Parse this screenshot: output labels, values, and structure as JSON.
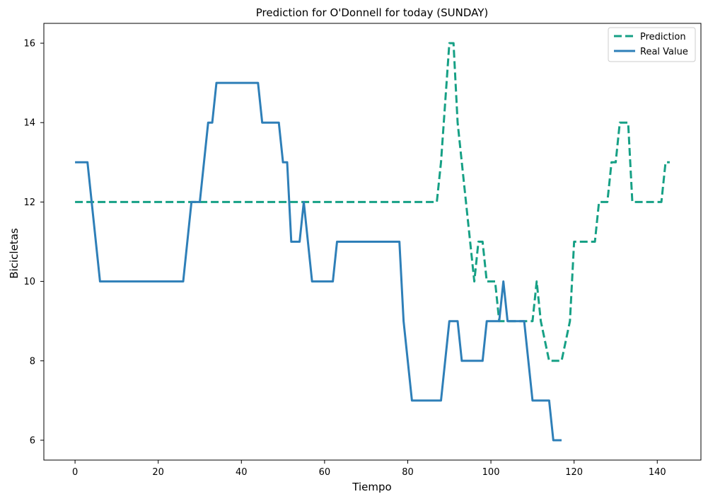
{
  "chart_data": {
    "type": "line",
    "title": "Prediction for O'Donnell for today (SUNDAY)",
    "xlabel": "Tiempo",
    "ylabel": "Bicicletas",
    "xlim": [
      -7.5,
      150.5
    ],
    "ylim": [
      5.5,
      16.5
    ],
    "xticks": [
      0,
      20,
      40,
      60,
      80,
      100,
      120,
      140
    ],
    "yticks": [
      6,
      8,
      10,
      12,
      14,
      16
    ],
    "grid": false,
    "legend_position": "top-right",
    "series": [
      {
        "name": "Prediction",
        "color": "#16a085",
        "dash": "dashed",
        "x": [
          0,
          87,
          88,
          90,
          91,
          92,
          93,
          96,
          97,
          98,
          99,
          101,
          102,
          104,
          110,
          111,
          112,
          114,
          117,
          119,
          120,
          122,
          124,
          125,
          126,
          128,
          129,
          130,
          131,
          132,
          133,
          134,
          140,
          141,
          142,
          143
        ],
        "y": [
          12,
          12,
          13,
          16,
          16,
          14,
          13,
          10,
          11,
          11,
          10,
          10,
          9,
          9,
          9,
          10,
          9,
          8,
          8,
          9,
          11,
          11,
          11,
          11,
          12,
          12,
          13,
          13,
          14,
          14,
          14,
          12,
          12,
          12,
          13,
          13
        ]
      },
      {
        "name": "Real Value",
        "color": "#2e7fb8",
        "dash": "solid",
        "x": [
          0,
          3,
          6,
          26,
          28,
          30,
          32,
          33,
          34,
          44,
          45,
          49,
          50,
          51,
          52,
          54,
          55,
          57,
          62,
          63,
          78,
          79,
          81,
          88,
          90,
          92,
          93,
          98,
          99,
          102,
          103,
          104,
          108,
          110,
          113,
          114,
          115,
          117
        ],
        "y": [
          13,
          13,
          10,
          10,
          12,
          12,
          14,
          14,
          15,
          15,
          14,
          14,
          13,
          13,
          11,
          11,
          12,
          10,
          10,
          11,
          11,
          9,
          7,
          7,
          9,
          9,
          8,
          8,
          9,
          9,
          10,
          9,
          9,
          7,
          7,
          7,
          6,
          6
        ]
      }
    ]
  }
}
